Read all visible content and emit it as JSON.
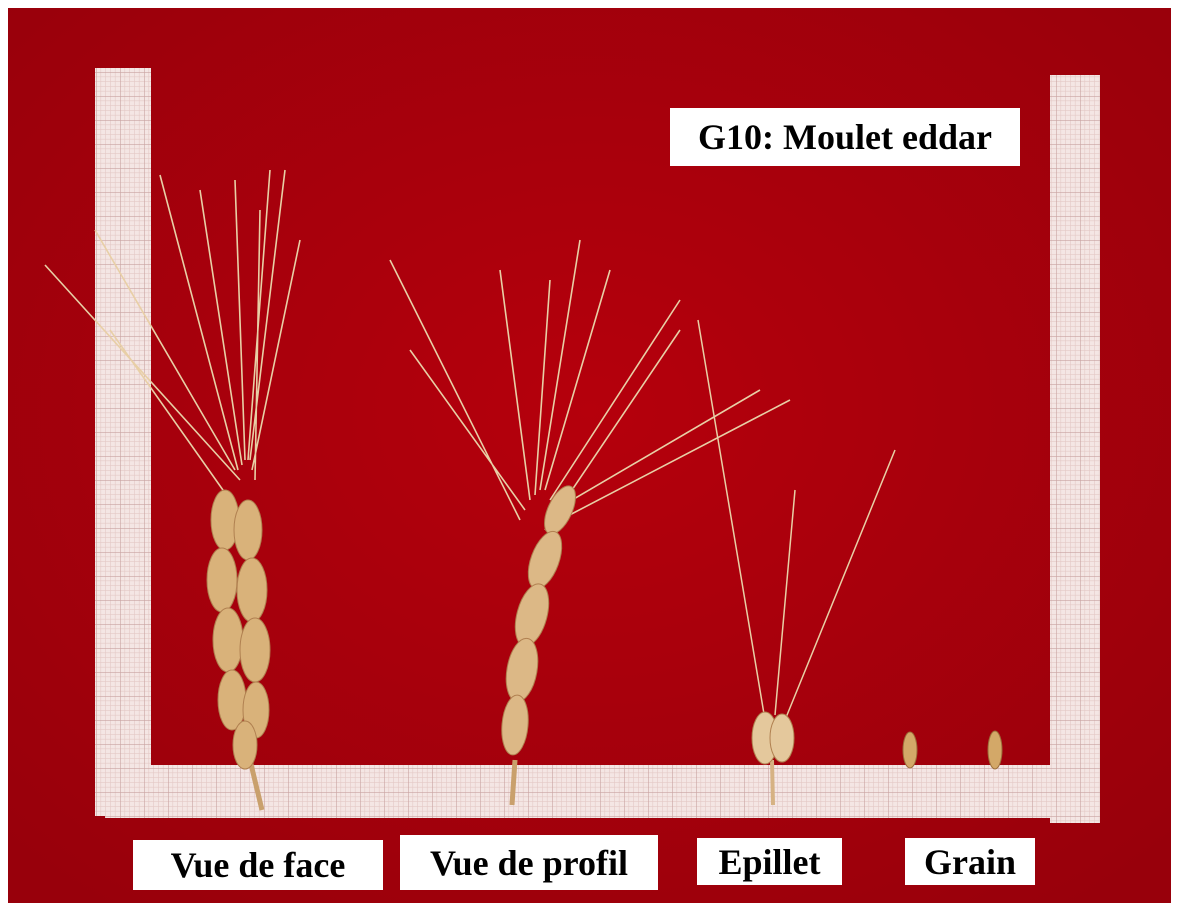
{
  "title": "G10: Moulet eddar",
  "labels": [
    "Vue de face",
    "Vue de profil",
    "Epillet",
    "Grain"
  ]
}
